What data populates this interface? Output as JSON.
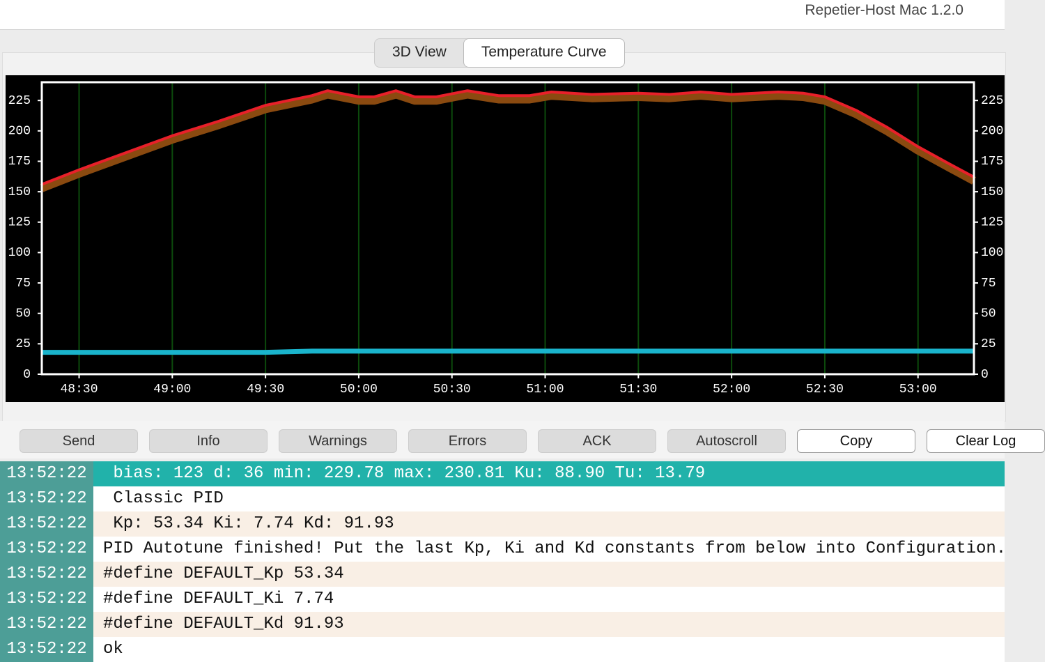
{
  "window": {
    "title": "Repetier-Host Mac 1.2.0"
  },
  "tabs": [
    "3D View",
    "Temperature Curve"
  ],
  "chart_data": {
    "type": "line",
    "grid": true,
    "x": [
      2898,
      2910,
      2925,
      2940,
      2955,
      2970,
      2985,
      2990,
      3000,
      3005,
      3012,
      3018,
      3025,
      3035,
      3045,
      3055,
      3062,
      3075,
      3090,
      3100,
      3110,
      3120,
      3135,
      3143,
      3150,
      3160,
      3170,
      3180,
      3190,
      3198
    ],
    "xlim": [
      2898,
      3198
    ],
    "xticks": [
      {
        "value": 2910,
        "label": "48:30"
      },
      {
        "value": 2940,
        "label": "49:00"
      },
      {
        "value": 2970,
        "label": "49:30"
      },
      {
        "value": 3000,
        "label": "50:00"
      },
      {
        "value": 3030,
        "label": "50:30"
      },
      {
        "value": 3060,
        "label": "51:00"
      },
      {
        "value": 3090,
        "label": "51:30"
      },
      {
        "value": 3120,
        "label": "52:00"
      },
      {
        "value": 3150,
        "label": "52:30"
      },
      {
        "value": 3180,
        "label": "53:00"
      }
    ],
    "ylim": [
      0,
      240
    ],
    "yticks": [
      0,
      25,
      50,
      75,
      100,
      125,
      150,
      175,
      200,
      225
    ],
    "series": [
      {
        "color": "#8a4a10",
        "width": 12,
        "values": [
          153,
          165,
          179,
          193,
          205,
          218,
          226,
          230,
          225,
          225,
          230,
          225,
          225,
          230,
          226,
          226,
          229,
          227,
          228,
          227,
          229,
          227,
          229,
          228,
          225,
          214,
          200,
          184,
          170,
          159
        ]
      },
      {
        "color": "#e8202a",
        "width": 4,
        "values": [
          156,
          168,
          182,
          196,
          208,
          221,
          229,
          233,
          228,
          228,
          233,
          228,
          228,
          233,
          229,
          229,
          232,
          230,
          231,
          230,
          232,
          230,
          232,
          231,
          228,
          217,
          203,
          187,
          173,
          162
        ]
      },
      {
        "color": "#1ab4cc",
        "width": 7,
        "values": [
          18,
          18,
          18,
          18,
          18,
          18,
          19,
          19,
          19,
          19,
          19,
          19,
          19,
          19,
          19,
          19,
          19,
          19,
          19,
          19,
          19,
          19,
          19,
          19,
          19,
          19,
          19,
          19,
          19,
          19
        ]
      }
    ]
  },
  "buttons": [
    "Send",
    "Info",
    "Warnings",
    "Errors",
    "ACK",
    "Autoscroll",
    "Copy",
    "Clear Log"
  ],
  "log": {
    "rows": [
      [
        "13:52:22",
        " bias: 123 d: 36 min: 229.78 max: 230.81 Ku: 88.90 Tu: 13.79"
      ],
      [
        "13:52:22",
        " Classic PID"
      ],
      [
        "13:52:22",
        " Kp: 53.34 Ki: 7.74 Kd: 91.93"
      ],
      [
        "13:52:22",
        "PID Autotune finished! Put the last Kp, Ki and Kd constants from below into Configuration."
      ],
      [
        "13:52:22",
        "#define DEFAULT_Kp 53.34"
      ],
      [
        "13:52:22",
        "#define DEFAULT_Ki 7.74"
      ],
      [
        "13:52:22",
        "#define DEFAULT_Kd 91.93"
      ],
      [
        "13:52:22",
        "ok"
      ]
    ]
  }
}
